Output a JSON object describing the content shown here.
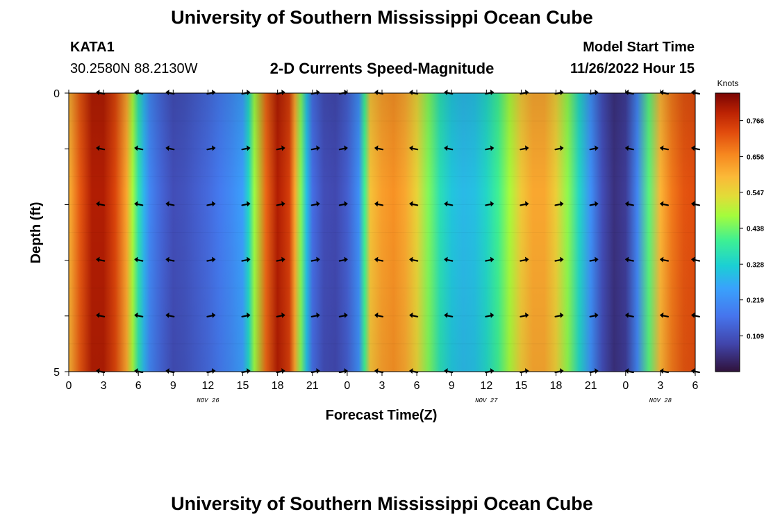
{
  "header": {
    "title": "University of Southern Mississippi Ocean Cube",
    "station_id": "KATA1",
    "station_coords": "30.2580N  88.2130W",
    "chart_subtitle": "2-D Currents Speed-Magnitude",
    "model_start_label": "Model Start Time",
    "model_start_value": "11/26/2022 Hour 15"
  },
  "footer": {
    "title": "University of Southern Mississippi Ocean Cube"
  },
  "chart_data": {
    "type": "heatmap",
    "title": "2-D Currents Speed-Magnitude",
    "xlabel": "Forecast Time(Z)",
    "ylabel": "Depth (ft)",
    "x_hours": [
      0,
      3,
      6,
      9,
      12,
      15,
      18,
      21,
      24,
      27,
      30,
      33,
      36,
      39,
      42,
      45,
      48,
      51,
      54
    ],
    "x_tick_labels": [
      "0",
      "3",
      "6",
      "9",
      "12",
      "15",
      "18",
      "21",
      "0",
      "3",
      "6",
      "9",
      "12",
      "15",
      "18",
      "21",
      "0",
      "3",
      "6"
    ],
    "date_labels": [
      {
        "text": "NOV 26",
        "hour": 12
      },
      {
        "text": "NOV 27",
        "hour": 36
      },
      {
        "text": "NOV 28",
        "hour": 51
      }
    ],
    "xlim": [
      0,
      54
    ],
    "y_depth_range": [
      0,
      5
    ],
    "y_tick_labels": [
      "0",
      "5"
    ],
    "colorbar": {
      "unit": "Knots",
      "range": [
        0,
        0.85
      ],
      "tick_values": [
        0.109,
        0.219,
        0.328,
        0.438,
        0.547,
        0.656,
        0.766
      ],
      "tick_labels": [
        "0.109",
        "0.219",
        "0.328",
        "0.438",
        "0.547",
        "0.656",
        "0.766"
      ]
    },
    "speed_profile": [
      [
        0,
        0.6
      ],
      [
        1,
        0.72
      ],
      [
        2,
        0.8
      ],
      [
        3,
        0.8
      ],
      [
        4,
        0.74
      ],
      [
        5,
        0.62
      ],
      [
        5.5,
        0.48
      ],
      [
        6,
        0.37
      ],
      [
        6.5,
        0.28
      ],
      [
        7,
        0.2
      ],
      [
        8,
        0.14
      ],
      [
        9,
        0.1
      ],
      [
        10,
        0.11
      ],
      [
        11,
        0.13
      ],
      [
        12,
        0.15
      ],
      [
        13,
        0.18
      ],
      [
        14,
        0.21
      ],
      [
        15,
        0.25
      ],
      [
        15.5,
        0.34
      ],
      [
        16,
        0.47
      ],
      [
        17,
        0.7
      ],
      [
        18,
        0.8
      ],
      [
        19,
        0.75
      ],
      [
        19.5,
        0.62
      ],
      [
        20,
        0.45
      ],
      [
        20.5,
        0.3
      ],
      [
        21,
        0.16
      ],
      [
        22,
        0.1
      ],
      [
        23,
        0.09
      ],
      [
        24,
        0.13
      ],
      [
        25,
        0.22
      ],
      [
        25.5,
        0.4
      ],
      [
        26,
        0.58
      ],
      [
        27,
        0.63
      ],
      [
        28,
        0.65
      ],
      [
        29,
        0.62
      ],
      [
        30,
        0.55
      ],
      [
        31,
        0.45
      ],
      [
        32,
        0.36
      ],
      [
        33,
        0.31
      ],
      [
        34,
        0.29
      ],
      [
        35,
        0.3
      ],
      [
        36,
        0.34
      ],
      [
        37,
        0.4
      ],
      [
        38,
        0.48
      ],
      [
        39,
        0.57
      ],
      [
        40,
        0.62
      ],
      [
        41,
        0.62
      ],
      [
        42,
        0.56
      ],
      [
        43,
        0.46
      ],
      [
        44,
        0.34
      ],
      [
        45,
        0.22
      ],
      [
        46,
        0.1
      ],
      [
        47,
        0.05
      ],
      [
        48,
        0.07
      ],
      [
        49,
        0.2
      ],
      [
        50,
        0.42
      ],
      [
        51,
        0.6
      ],
      [
        52,
        0.68
      ],
      [
        53,
        0.72
      ],
      [
        54,
        0.73
      ]
    ],
    "arrow_rows_depth": [
      0,
      1,
      2,
      3,
      4,
      5
    ],
    "arrow_hours": [
      2.7,
      6,
      8.7,
      12.3,
      15.3,
      18.3,
      21.3,
      23.7,
      26.7,
      29.7,
      32.7,
      36.3,
      39.3,
      42.3,
      45.3,
      48.3,
      51.3,
      54
    ],
    "arrow_directions": [
      "W",
      "W",
      "W",
      "E",
      "E",
      "E",
      "E",
      "E",
      "W",
      "W",
      "W",
      "E",
      "E",
      "E",
      "E",
      "W",
      "W",
      "W"
    ]
  }
}
